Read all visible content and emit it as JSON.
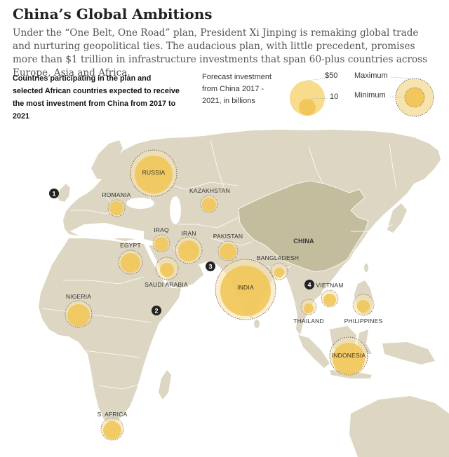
{
  "title": "China’s Global Ambitions",
  "dek": "Under the “One Belt, One Road” plan, President Xi Jinping is remaking global trade and nurturing geopolitical ties. The audacious plan, with little precedent, promises more than $1 trillion in infrastructure investments that span 60-plus countries across Europe, Asia and Africa.",
  "subhead": "Countries participating in the plan and selected African countries expected to receive the most investment from China from 2017 to 2021",
  "legend": {
    "forecast_label": "Forecast investment from China 2017 - 2021, in billions",
    "large_value": "$50",
    "small_value": "10",
    "maximum": "Maximum",
    "minimum": "Minimum"
  },
  "colors": {
    "water": "#ffffff",
    "land": "#dcd6c2",
    "china": "#c3bd9d",
    "bubble": "#f2c65a",
    "bubble_stroke": "#555555"
  },
  "countries": [
    {
      "key": "russia",
      "label": "RUSSIA"
    },
    {
      "key": "romania",
      "label": "ROMANIA"
    },
    {
      "key": "kazakhstan",
      "label": "KAZAKHSTAN"
    },
    {
      "key": "iraq",
      "label": "IRAQ"
    },
    {
      "key": "iran",
      "label": "IRAN"
    },
    {
      "key": "pakistan",
      "label": "PAKISTAN"
    },
    {
      "key": "egypt",
      "label": "EGYPT"
    },
    {
      "key": "saudi",
      "label": "SAUDI ARABIA"
    },
    {
      "key": "bangladesh",
      "label": "BANGLADESH"
    },
    {
      "key": "india",
      "label": "INDIA"
    },
    {
      "key": "vietnam",
      "label": "VIETNAM"
    },
    {
      "key": "thailand",
      "label": "THAILAND"
    },
    {
      "key": "philippines",
      "label": "PHILIPPINES"
    },
    {
      "key": "nigeria",
      "label": "NIGERIA"
    },
    {
      "key": "indonesia",
      "label": "INDONESIA"
    },
    {
      "key": "s_africa",
      "label": "S. AFRICA"
    }
  ],
  "china_label": "CHINA",
  "markers": [
    "1",
    "2",
    "3",
    "4"
  ]
}
